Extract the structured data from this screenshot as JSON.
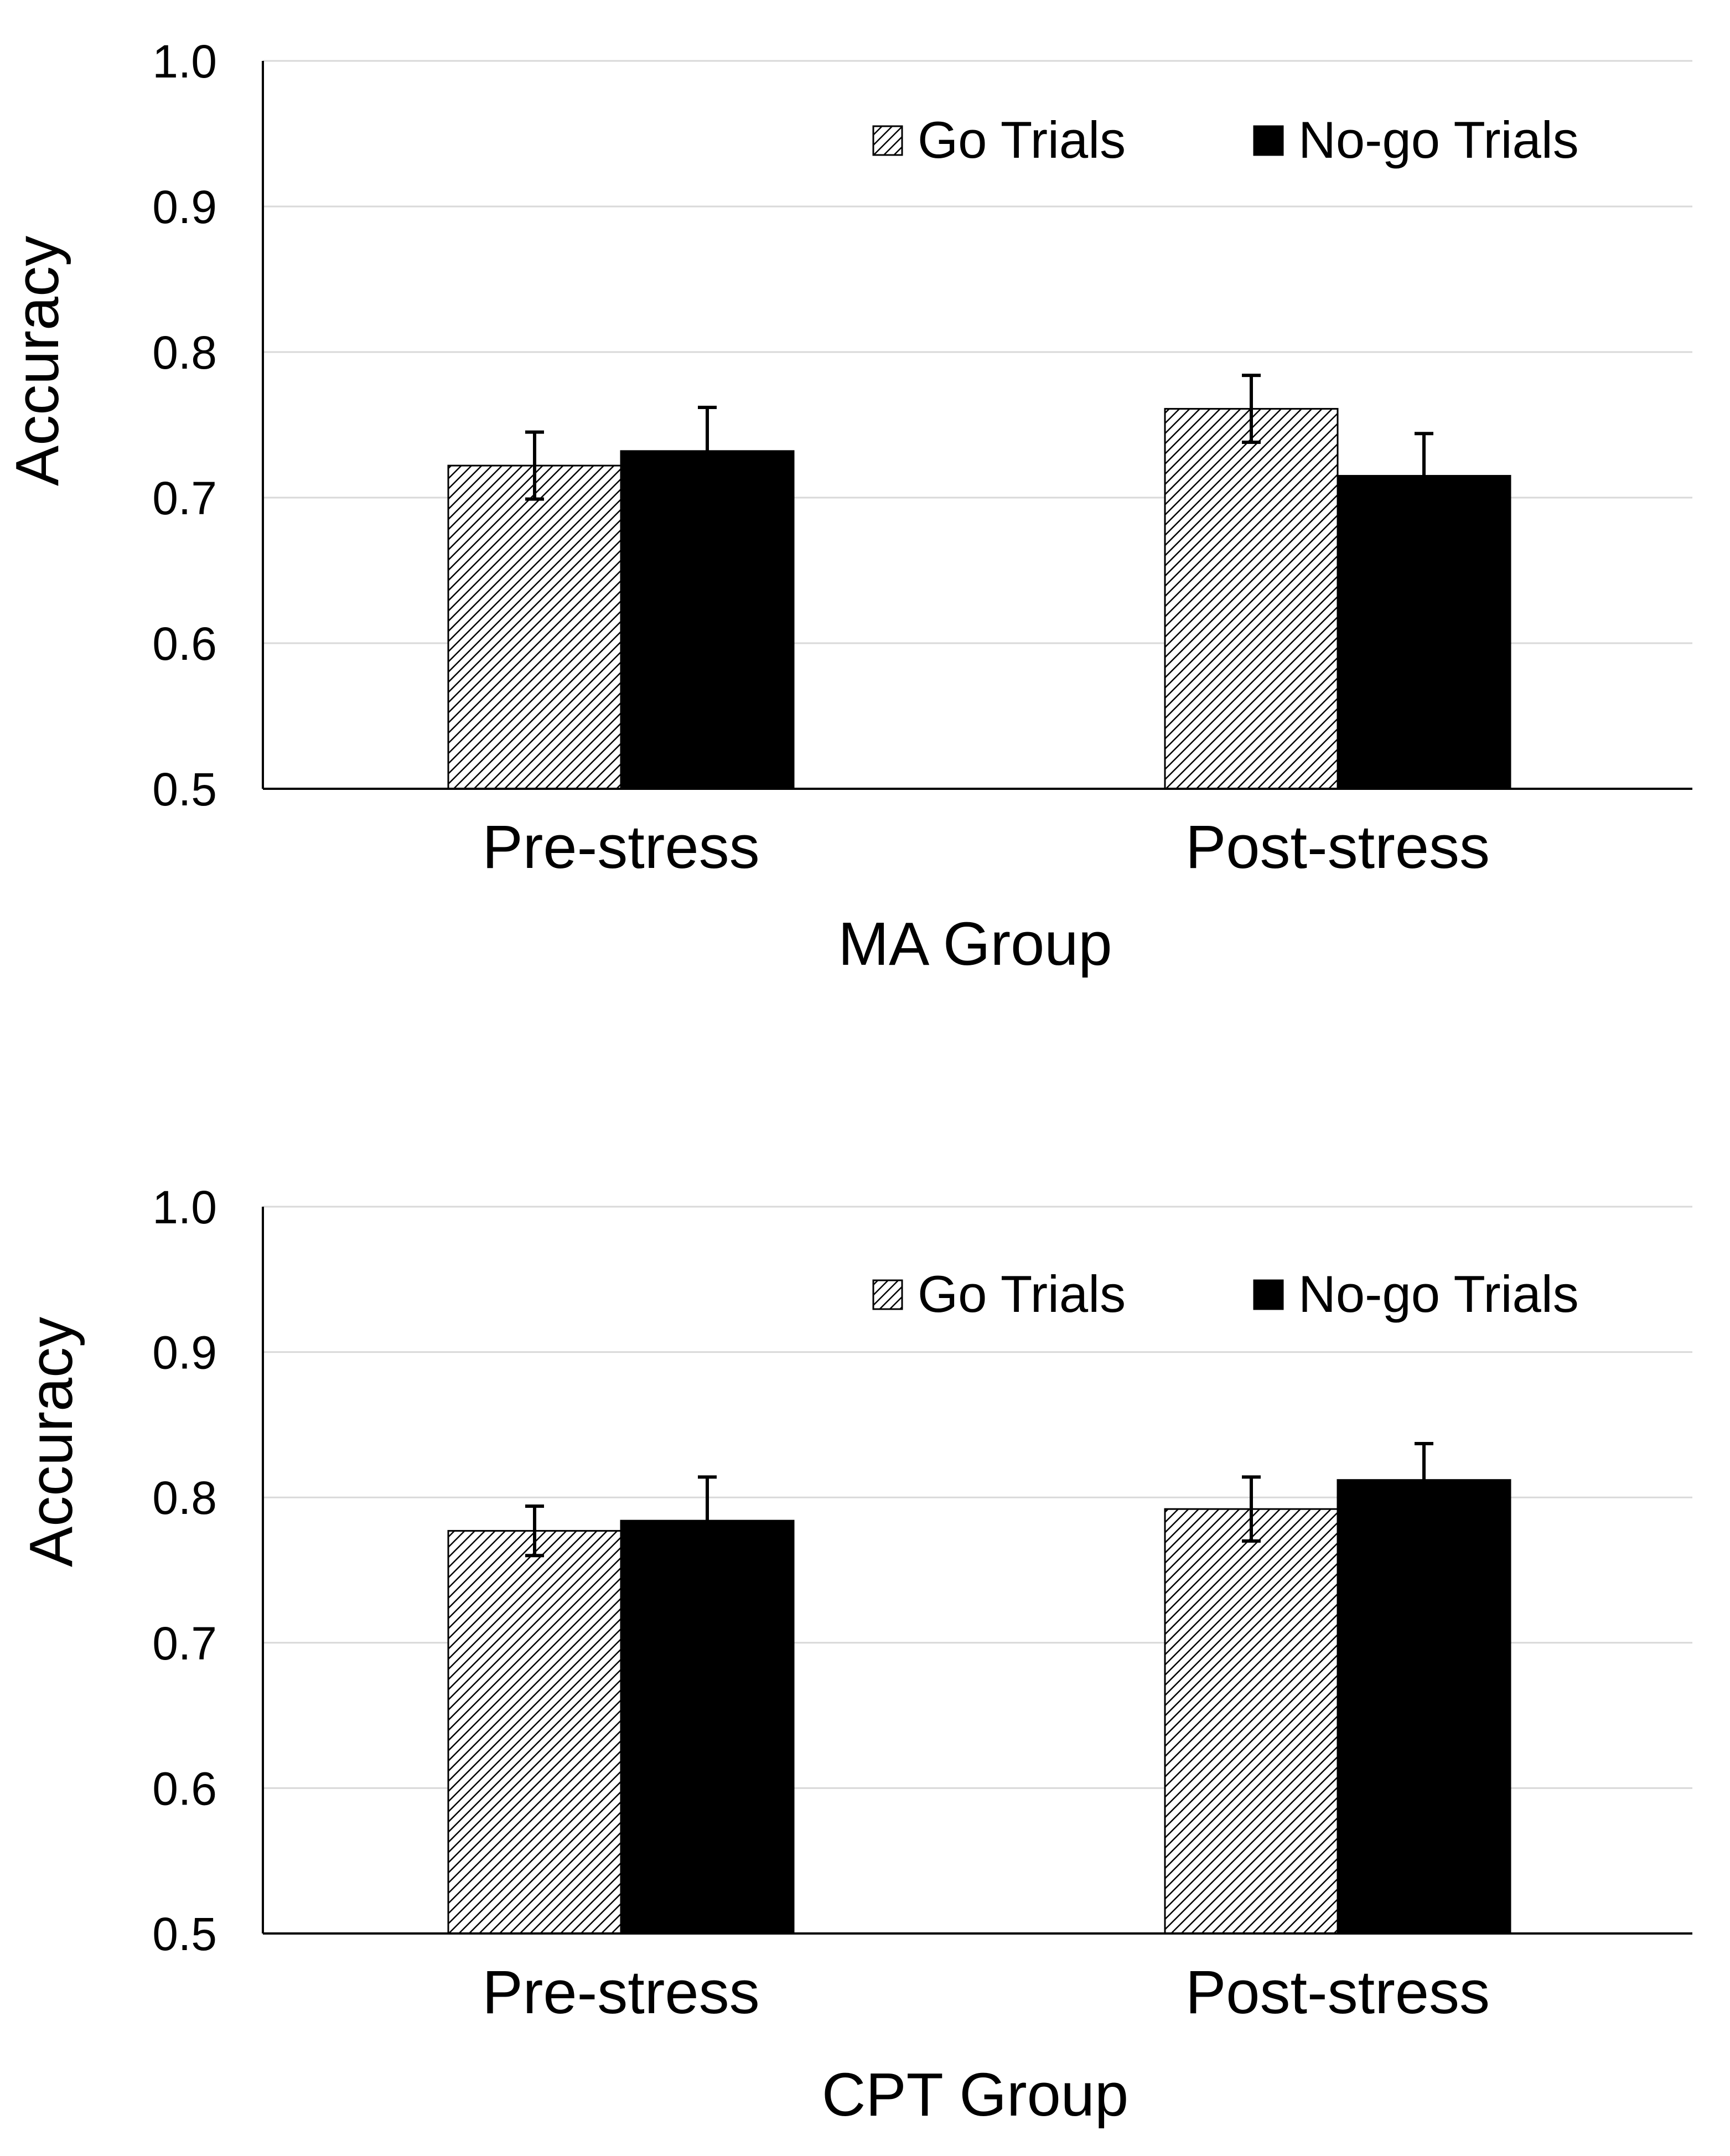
{
  "chart_data": [
    {
      "type": "bar",
      "title": "",
      "xlabel": "MA Group",
      "ylabel": "Accuracy",
      "categories": [
        "Pre-stress",
        "Post-stress"
      ],
      "series": [
        {
          "name": "Go Trials",
          "values": [
            0.722,
            0.761
          ],
          "errors": [
            0.023,
            0.023
          ],
          "pattern": "hatched"
        },
        {
          "name": "No-go Trials",
          "values": [
            0.732,
            0.715
          ],
          "errors": [
            0.03,
            0.029
          ],
          "pattern": "solid"
        }
      ],
      "ylim": [
        0.5,
        1.0
      ],
      "yticks": [
        "0.5",
        "0.6",
        "0.7",
        "0.8",
        "0.9",
        "1.0"
      ],
      "grid": true,
      "legend_position": "top-right"
    },
    {
      "type": "bar",
      "title": "",
      "xlabel": "CPT Group",
      "ylabel": "Accuracy",
      "categories": [
        "Pre-stress",
        "Post-stress"
      ],
      "series": [
        {
          "name": "Go Trials",
          "values": [
            0.777,
            0.792
          ],
          "errors": [
            0.017,
            0.022
          ],
          "pattern": "hatched"
        },
        {
          "name": "No-go Trials",
          "values": [
            0.784,
            0.812
          ],
          "errors": [
            0.03,
            0.025
          ],
          "pattern": "solid"
        }
      ],
      "ylim": [
        0.5,
        1.0
      ],
      "yticks": [
        "0.5",
        "0.6",
        "0.7",
        "0.8",
        "0.9",
        "1.0"
      ],
      "grid": true,
      "legend_position": "top-right"
    }
  ],
  "colors": {
    "no_go": "#000000",
    "go_hatch": "#000000",
    "grid": "#d9d9d9",
    "axis": "#000000"
  }
}
